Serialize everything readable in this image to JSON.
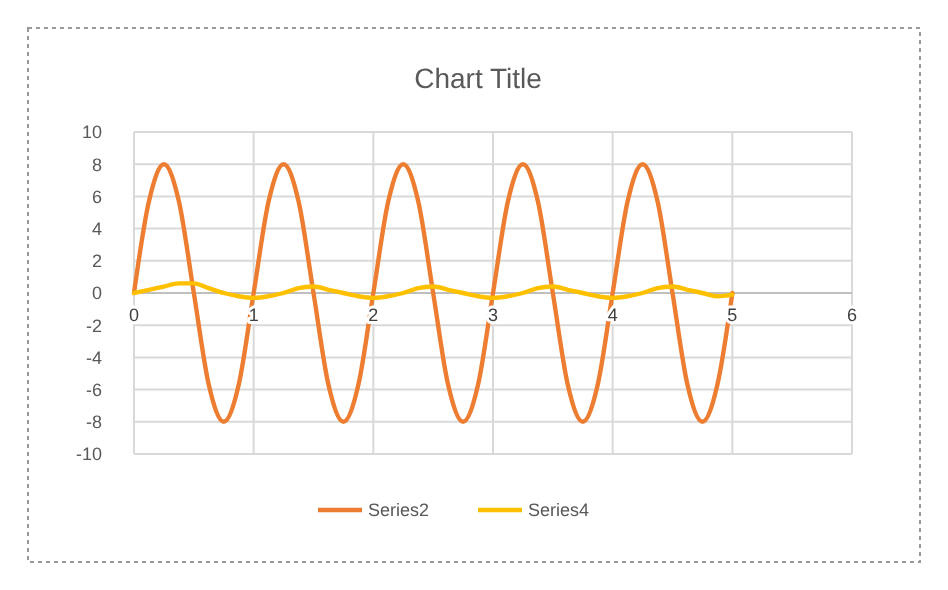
{
  "chart_data": {
    "type": "line",
    "title": "Chart Title",
    "x": [
      0,
      0.125,
      0.25,
      0.375,
      0.5,
      0.625,
      0.75,
      0.875,
      1,
      1.125,
      1.25,
      1.375,
      1.5,
      1.625,
      1.75,
      1.875,
      2,
      2.125,
      2.25,
      2.375,
      2.5,
      2.625,
      2.75,
      2.875,
      3,
      3.125,
      3.25,
      3.375,
      3.5,
      3.625,
      3.75,
      3.875,
      4,
      4.125,
      4.25,
      4.375,
      4.5,
      4.625,
      4.75,
      4.875,
      5
    ],
    "series": [
      {
        "name": "Series2",
        "color": "#ed7d31",
        "values": [
          0,
          5.7,
          8,
          5.7,
          0,
          -5.7,
          -8,
          -5.7,
          0,
          5.7,
          8,
          5.7,
          0,
          -5.7,
          -8,
          -5.7,
          0,
          5.7,
          8,
          5.7,
          0,
          -5.7,
          -8,
          -5.7,
          0,
          5.7,
          8,
          5.7,
          0,
          -5.7,
          -8,
          -5.7,
          0,
          5.7,
          8,
          5.7,
          0,
          -5.7,
          -8,
          -5.7,
          0
        ]
      },
      {
        "name": "Series4",
        "color": "#ffc000",
        "values": [
          0,
          0.2,
          0.4,
          0.6,
          0.6,
          0.3,
          0,
          -0.2,
          -0.3,
          -0.2,
          0,
          0.3,
          0.4,
          0.2,
          0,
          -0.2,
          -0.3,
          -0.2,
          0,
          0.3,
          0.4,
          0.2,
          0,
          -0.2,
          -0.3,
          -0.2,
          0,
          0.3,
          0.4,
          0.2,
          0,
          -0.2,
          -0.3,
          -0.2,
          0,
          0.3,
          0.4,
          0.2,
          0,
          -0.2,
          -0.1
        ]
      }
    ],
    "xlim": [
      0,
      6
    ],
    "xticks": [
      0,
      1,
      2,
      3,
      4,
      5,
      6
    ],
    "ylim": [
      -10,
      10
    ],
    "yticks": [
      -10,
      -8,
      -6,
      -4,
      -2,
      0,
      2,
      4,
      6,
      8,
      10
    ],
    "grid": true,
    "legend": "bottom",
    "marker": "none",
    "line_style": "solid"
  }
}
